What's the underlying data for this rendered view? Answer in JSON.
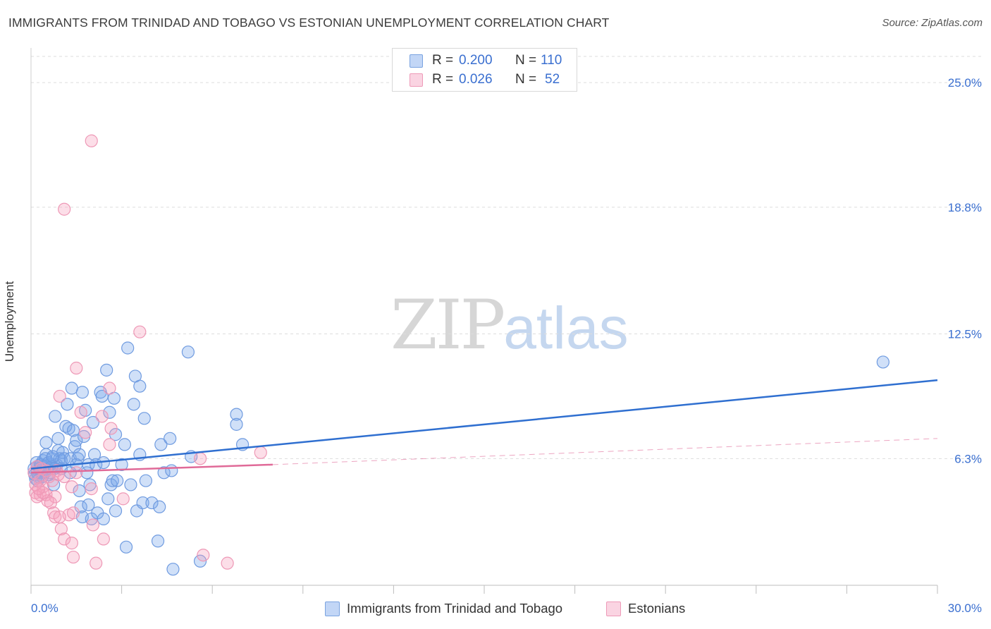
{
  "title": "IMMIGRANTS FROM TRINIDAD AND TOBAGO VS ESTONIAN UNEMPLOYMENT CORRELATION CHART",
  "source": "Source: ZipAtlas.com",
  "watermark": {
    "zip": "ZIP",
    "atlas": "atlas"
  },
  "legend": {
    "rows": [
      {
        "r_label": "R =",
        "r_value": "0.200",
        "n_label": "N =",
        "n_value": "110"
      },
      {
        "r_label": "R =",
        "r_value": "0.026",
        "n_label": "N =",
        "n_value": "52"
      }
    ]
  },
  "bottom_legend": [
    "Immigrants from Trinidad and Tobago",
    "Estonians"
  ],
  "colors": {
    "blue_fill": "rgba(120,165,235,0.35)",
    "blue_stroke": "#6f9be0",
    "blue_line": "#2f6fd0",
    "pink_fill": "rgba(245,160,190,0.35)",
    "pink_stroke": "#ee98b6",
    "pink_line": "#e06a98",
    "tick_text": "#3a6fd0",
    "grid": "#dddddd"
  },
  "chart_data": {
    "type": "scatter",
    "title": "IMMIGRANTS FROM TRINIDAD AND TOBAGO VS ESTONIAN UNEMPLOYMENT CORRELATION CHART",
    "xlabel": "",
    "ylabel": "Unemployment",
    "xlim": [
      0,
      30
    ],
    "ylim": [
      0,
      26.3
    ],
    "x_tick_labels": [
      "0.0%",
      "30.0%"
    ],
    "y_ticks": [
      6.3,
      12.5,
      18.8,
      25.0
    ],
    "y_tick_labels": [
      "6.3%",
      "12.5%",
      "18.8%",
      "25.0%"
    ],
    "grid": true,
    "series": [
      {
        "name": "Immigrants from Trinidad and Tobago",
        "R": 0.2,
        "N": 110,
        "trend": {
          "x": [
            0,
            30
          ],
          "y": [
            5.8,
            10.2
          ],
          "style": "solid"
        },
        "points": [
          [
            0.1,
            5.8
          ],
          [
            0.15,
            5.3
          ],
          [
            0.2,
            5.6
          ],
          [
            0.2,
            5.9
          ],
          [
            0.25,
            5.4
          ],
          [
            0.3,
            5.7
          ],
          [
            0.3,
            6.0
          ],
          [
            0.35,
            5.6
          ],
          [
            0.4,
            5.9
          ],
          [
            0.4,
            6.2
          ],
          [
            0.45,
            5.6
          ],
          [
            0.5,
            7.1
          ],
          [
            0.5,
            6.5
          ],
          [
            0.55,
            5.8
          ],
          [
            0.6,
            6.0
          ],
          [
            0.6,
            5.5
          ],
          [
            0.7,
            6.3
          ],
          [
            0.7,
            5.9
          ],
          [
            0.75,
            5.0
          ],
          [
            0.8,
            8.4
          ],
          [
            0.85,
            6.0
          ],
          [
            0.9,
            7.3
          ],
          [
            0.9,
            6.7
          ],
          [
            0.95,
            6.3
          ],
          [
            1.0,
            6.2
          ],
          [
            1.0,
            5.8
          ],
          [
            1.05,
            6.6
          ],
          [
            1.1,
            6.3
          ],
          [
            1.15,
            7.9
          ],
          [
            1.2,
            9.0
          ],
          [
            1.25,
            7.8
          ],
          [
            1.3,
            5.6
          ],
          [
            1.3,
            6.3
          ],
          [
            1.35,
            9.8
          ],
          [
            1.4,
            7.7
          ],
          [
            1.45,
            6.9
          ],
          [
            1.5,
            7.2
          ],
          [
            1.5,
            6.0
          ],
          [
            1.55,
            6.3
          ],
          [
            1.6,
            4.7
          ],
          [
            1.6,
            6.5
          ],
          [
            1.65,
            3.9
          ],
          [
            1.7,
            9.6
          ],
          [
            1.7,
            3.4
          ],
          [
            1.75,
            7.4
          ],
          [
            1.8,
            8.7
          ],
          [
            1.85,
            5.6
          ],
          [
            1.9,
            4.0
          ],
          [
            1.9,
            6.0
          ],
          [
            1.95,
            5.0
          ],
          [
            2.0,
            3.3
          ],
          [
            2.05,
            8.1
          ],
          [
            2.1,
            6.5
          ],
          [
            2.15,
            6.0
          ],
          [
            2.2,
            3.6
          ],
          [
            2.3,
            9.6
          ],
          [
            2.35,
            9.4
          ],
          [
            2.4,
            3.3
          ],
          [
            2.4,
            6.1
          ],
          [
            2.5,
            10.7
          ],
          [
            2.55,
            4.3
          ],
          [
            2.6,
            8.6
          ],
          [
            2.65,
            5.0
          ],
          [
            2.7,
            5.2
          ],
          [
            2.75,
            9.3
          ],
          [
            2.8,
            7.5
          ],
          [
            2.8,
            3.7
          ],
          [
            2.85,
            5.2
          ],
          [
            3.0,
            6.0
          ],
          [
            3.1,
            7.0
          ],
          [
            3.15,
            1.9
          ],
          [
            3.2,
            11.8
          ],
          [
            3.3,
            5.0
          ],
          [
            3.4,
            9.0
          ],
          [
            3.45,
            10.4
          ],
          [
            3.5,
            3.7
          ],
          [
            3.6,
            9.9
          ],
          [
            3.6,
            6.5
          ],
          [
            3.7,
            4.1
          ],
          [
            3.75,
            8.3
          ],
          [
            3.8,
            5.2
          ],
          [
            4.0,
            4.1
          ],
          [
            4.2,
            2.2
          ],
          [
            4.25,
            3.9
          ],
          [
            4.3,
            7.0
          ],
          [
            4.4,
            5.6
          ],
          [
            4.6,
            7.3
          ],
          [
            4.65,
            5.7
          ],
          [
            4.7,
            0.8
          ],
          [
            5.2,
            11.6
          ],
          [
            5.3,
            6.4
          ],
          [
            5.6,
            1.2
          ],
          [
            6.8,
            8.5
          ],
          [
            6.8,
            8.0
          ],
          [
            7.0,
            7.0
          ],
          [
            28.2,
            11.1
          ],
          [
            0.12,
            5.5
          ],
          [
            0.18,
            6.1
          ],
          [
            0.22,
            5.2
          ],
          [
            0.28,
            5.8
          ],
          [
            0.33,
            6.0
          ],
          [
            0.38,
            5.4
          ],
          [
            0.42,
            5.9
          ],
          [
            0.48,
            6.3
          ],
          [
            0.52,
            5.7
          ],
          [
            0.58,
            6.1
          ],
          [
            0.62,
            5.6
          ],
          [
            0.68,
            5.9
          ],
          [
            0.72,
            6.4
          ],
          [
            0.78,
            5.8
          ]
        ]
      },
      {
        "name": "Estonians",
        "R": 0.026,
        "N": 52,
        "trend": {
          "x": [
            0,
            8
          ],
          "y": [
            5.6,
            6.0
          ],
          "style": "solid"
        },
        "trend_extension": {
          "x": [
            8,
            30
          ],
          "y": [
            6.0,
            7.3
          ],
          "style": "dashed"
        },
        "points": [
          [
            2.0,
            22.1
          ],
          [
            1.1,
            18.7
          ],
          [
            3.6,
            12.6
          ],
          [
            1.5,
            10.8
          ],
          [
            2.6,
            9.8
          ],
          [
            0.95,
            9.4
          ],
          [
            1.65,
            8.6
          ],
          [
            2.35,
            8.4
          ],
          [
            2.65,
            7.8
          ],
          [
            1.8,
            7.6
          ],
          [
            2.6,
            7.0
          ],
          [
            7.6,
            6.6
          ],
          [
            5.6,
            6.3
          ],
          [
            0.2,
            5.9
          ],
          [
            0.5,
            5.7
          ],
          [
            0.85,
            5.7
          ],
          [
            1.1,
            5.4
          ],
          [
            0.3,
            5.2
          ],
          [
            0.6,
            5.4
          ],
          [
            0.15,
            5.0
          ],
          [
            0.4,
            4.9
          ],
          [
            1.35,
            4.9
          ],
          [
            2.0,
            4.8
          ],
          [
            0.15,
            4.6
          ],
          [
            0.3,
            4.5
          ],
          [
            0.5,
            4.5
          ],
          [
            0.2,
            4.4
          ],
          [
            0.8,
            4.4
          ],
          [
            0.55,
            4.2
          ],
          [
            0.65,
            4.1
          ],
          [
            3.05,
            4.3
          ],
          [
            0.4,
            4.6
          ],
          [
            0.75,
            3.6
          ],
          [
            0.8,
            3.4
          ],
          [
            1.25,
            3.5
          ],
          [
            0.95,
            3.4
          ],
          [
            1.4,
            3.6
          ],
          [
            1.0,
            2.8
          ],
          [
            2.05,
            3.0
          ],
          [
            1.1,
            2.3
          ],
          [
            2.4,
            2.3
          ],
          [
            1.35,
            2.1
          ],
          [
            1.4,
            1.4
          ],
          [
            2.15,
            1.1
          ],
          [
            5.7,
            1.5
          ],
          [
            6.5,
            1.1
          ],
          [
            0.1,
            5.6
          ],
          [
            0.35,
            5.8
          ],
          [
            0.9,
            5.5
          ],
          [
            0.25,
            4.8
          ],
          [
            1.5,
            5.6
          ],
          [
            0.7,
            5.2
          ]
        ]
      }
    ]
  }
}
